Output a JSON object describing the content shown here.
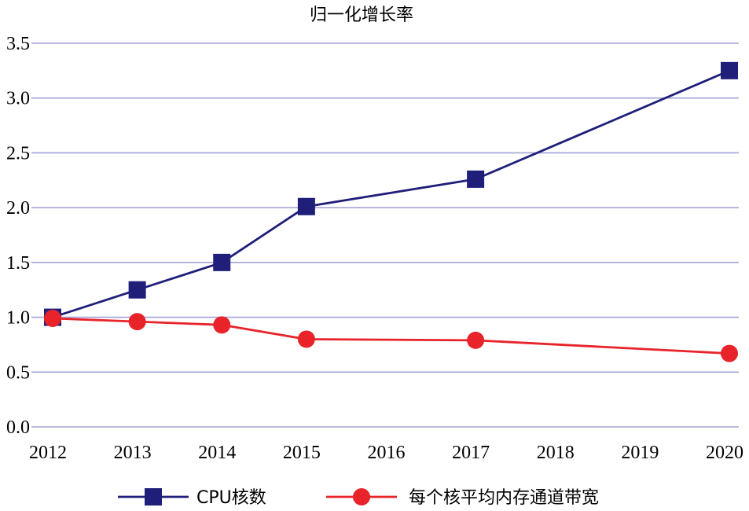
{
  "chart_data": {
    "type": "line",
    "title": "归一化增长率",
    "xlabel": "",
    "ylabel": "",
    "x": [
      2012,
      2013,
      2014,
      2015,
      2016,
      2017,
      2018,
      2019,
      2020
    ],
    "x_tick_labels": [
      "2012",
      "2013",
      "2014",
      "2015",
      "2016",
      "2017",
      "2018",
      "2019",
      "2020"
    ],
    "ylim": [
      0,
      3.5
    ],
    "y_ticks": [
      0,
      0.5,
      1,
      1.5,
      2,
      2.5,
      3,
      3.5
    ],
    "y_tick_labels": [
      "0.0",
      "0.5",
      "1.0",
      "1.5",
      "2.0",
      "2.5",
      "3.0",
      "3.5"
    ],
    "grid": "horizontal",
    "legend_position": "bottom",
    "series": [
      {
        "name": "CPU核数",
        "color": "#1f1f7a",
        "marker": "square",
        "points": [
          {
            "x": 2012,
            "y": 1.0
          },
          {
            "x": 2013,
            "y": 1.25
          },
          {
            "x": 2014,
            "y": 1.5
          },
          {
            "x": 2015,
            "y": 2.01
          },
          {
            "x": 2017,
            "y": 2.26
          },
          {
            "x": 2020,
            "y": 3.25
          }
        ]
      },
      {
        "name": "每个核平均内存通道带宽",
        "color": "#e8232a",
        "marker": "circle",
        "points": [
          {
            "x": 2012,
            "y": 0.99
          },
          {
            "x": 2013,
            "y": 0.96
          },
          {
            "x": 2014,
            "y": 0.93
          },
          {
            "x": 2015,
            "y": 0.8
          },
          {
            "x": 2017,
            "y": 0.79
          },
          {
            "x": 2020,
            "y": 0.67
          }
        ]
      }
    ]
  }
}
